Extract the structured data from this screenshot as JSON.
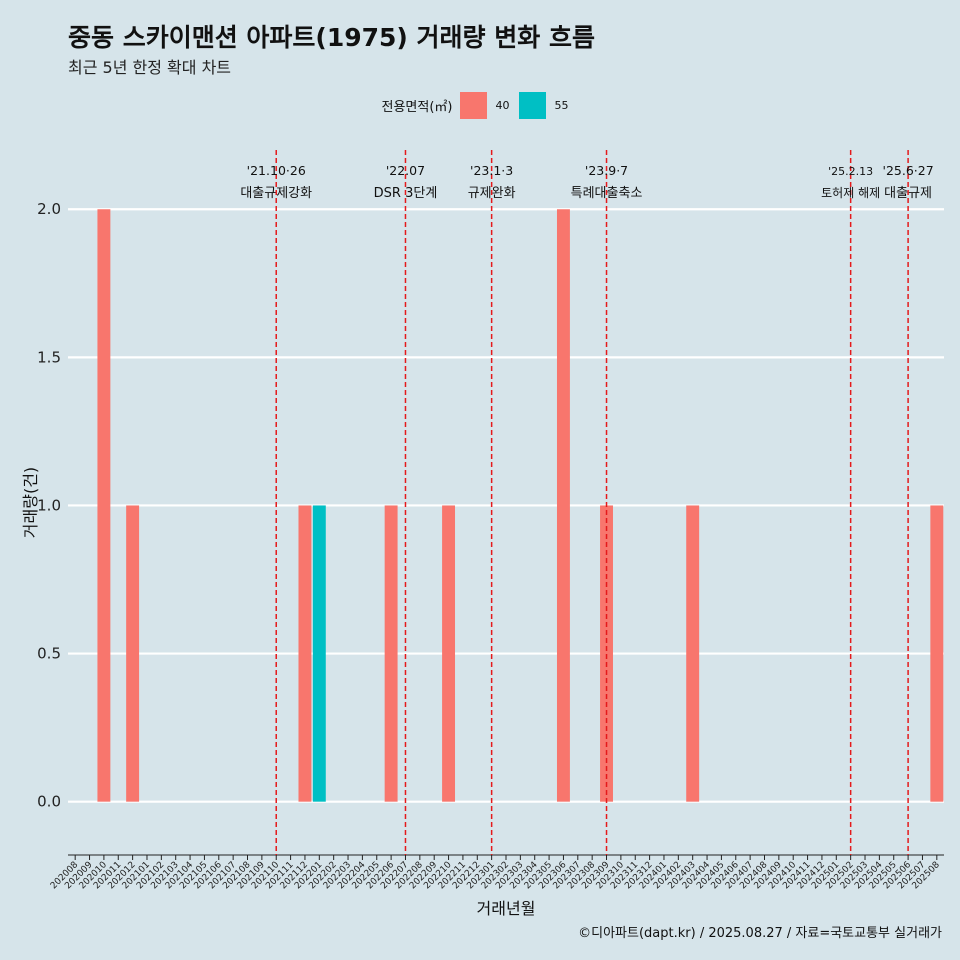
{
  "title": "중동 스카이맨션 아파트(1975) 거래량 변화 흐름",
  "subtitle": "최근 5년 한정 확대 차트",
  "caption": "©디아파트(dapt.kr) / 2025.08.27 / 자료=국토교통부 실거래가",
  "legend": {
    "title": "전용면적(㎡)",
    "items": [
      {
        "label": "40",
        "color": "#f8766d"
      },
      {
        "label": "55",
        "color": "#00bfc4"
      }
    ]
  },
  "chart_data": {
    "type": "bar",
    "xlabel": "거래년월",
    "ylabel": "거래량(건)",
    "ylim": [
      -0.18,
      2.2
    ],
    "yticks": [
      0.0,
      0.5,
      1.0,
      1.5,
      2.0
    ],
    "ytick_labels": [
      "0.0",
      "0.5",
      "1.0",
      "1.5",
      "2.0"
    ],
    "grid": true,
    "legend_position": "top",
    "categories": [
      "202008",
      "202009",
      "202010",
      "202011",
      "202012",
      "202101",
      "202102",
      "202103",
      "202104",
      "202105",
      "202106",
      "202107",
      "202108",
      "202109",
      "202110",
      "202111",
      "202112",
      "202201",
      "202202",
      "202203",
      "202204",
      "202205",
      "202206",
      "202207",
      "202208",
      "202209",
      "202210",
      "202211",
      "202212",
      "202301",
      "202302",
      "202303",
      "202304",
      "202305",
      "202306",
      "202307",
      "202308",
      "202309",
      "202310",
      "202311",
      "202312",
      "202401",
      "202402",
      "202403",
      "202404",
      "202405",
      "202406",
      "202407",
      "202408",
      "202409",
      "202410",
      "202411",
      "202412",
      "202501",
      "202502",
      "202503",
      "202504",
      "202505",
      "202506",
      "202507",
      "202508"
    ],
    "series": [
      {
        "name": "40",
        "color": "#f8766d",
        "values": [
          0,
          0,
          2,
          0,
          1,
          0,
          0,
          0,
          0,
          0,
          0,
          0,
          0,
          0,
          0,
          0,
          1,
          0,
          0,
          0,
          0,
          0,
          1,
          0,
          0,
          0,
          1,
          0,
          0,
          0,
          0,
          0,
          0,
          0,
          2,
          0,
          0,
          1,
          0,
          0,
          0,
          0,
          0,
          1,
          0,
          0,
          0,
          0,
          0,
          0,
          0,
          0,
          0,
          0,
          0,
          0,
          0,
          0,
          0,
          0,
          1
        ]
      },
      {
        "name": "55",
        "color": "#00bfc4",
        "values": [
          0,
          0,
          0,
          0,
          0,
          0,
          0,
          0,
          0,
          0,
          0,
          0,
          0,
          0,
          0,
          0,
          0,
          1,
          0,
          0,
          0,
          0,
          0,
          0,
          0,
          0,
          0,
          0,
          0,
          0,
          0,
          0,
          0,
          0,
          0,
          0,
          0,
          0,
          0,
          0,
          0,
          0,
          0,
          0,
          0,
          0,
          0,
          0,
          0,
          0,
          0,
          0,
          0,
          0,
          0,
          0,
          0,
          0,
          0,
          0,
          0
        ]
      }
    ],
    "annotations": [
      {
        "category": "202110",
        "date_label": "'21.10·26",
        "event": "대출규제강화"
      },
      {
        "category": "202207",
        "date_label": "'22.07",
        "event": "DSR 3단계"
      },
      {
        "category": "202301",
        "date_label": "'23.1·3",
        "event": "규제완화"
      },
      {
        "category": "202309",
        "date_label": "'23.9·7",
        "event": "특례대출축소"
      },
      {
        "category": "202502",
        "date_label": "'25.2.13",
        "event": "토허제 해제"
      },
      {
        "category": "202506",
        "date_label": "'25.6·27",
        "event": "대출규제"
      }
    ]
  }
}
